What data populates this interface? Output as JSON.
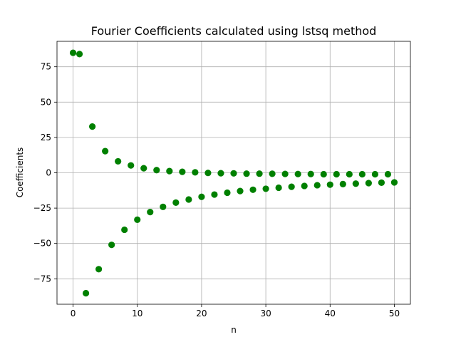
{
  "chart_data": {
    "type": "scatter",
    "title": "Fourier Coefficients calculated using lstsq method",
    "xlabel": "n",
    "ylabel": "Coefficients",
    "xlim": [
      -2.5,
      52.5
    ],
    "ylim": [
      -93,
      93
    ],
    "xticks": [
      0,
      10,
      20,
      30,
      40,
      50
    ],
    "yticks": [
      -75,
      -50,
      -25,
      0,
      25,
      50,
      75
    ],
    "xtick_labels": [
      "0",
      "10",
      "20",
      "30",
      "40",
      "50"
    ],
    "ytick_labels": [
      "−75",
      "−50",
      "−25",
      "0",
      "25",
      "50",
      "75"
    ],
    "grid": true,
    "marker_color": "#008000",
    "series": [
      {
        "x": [
          0,
          1,
          2,
          3,
          4,
          5,
          6,
          7,
          8,
          9,
          10,
          11,
          12,
          13,
          14,
          15,
          16,
          17,
          18,
          19,
          20,
          21,
          22,
          23,
          24,
          25,
          26,
          27,
          28,
          29,
          30,
          31,
          32,
          33,
          34,
          35,
          36,
          37,
          38,
          39,
          40,
          41,
          42,
          43,
          44,
          45,
          46,
          47,
          48,
          49,
          50
        ],
        "y": [
          84.9,
          84.0,
          -85.2,
          32.7,
          -68.2,
          15.3,
          -51.0,
          8.1,
          -40.3,
          5.2,
          -33.2,
          3.2,
          -27.8,
          1.9,
          -24.1,
          1.2,
          -21.1,
          0.7,
          -18.9,
          0.3,
          -17.0,
          -0.1,
          -15.4,
          -0.3,
          -14.1,
          -0.4,
          -12.9,
          -0.6,
          -12.0,
          -0.6,
          -11.3,
          -0.7,
          -10.6,
          -0.8,
          -9.9,
          -0.9,
          -9.3,
          -0.9,
          -8.8,
          -1.0,
          -8.4,
          -1.0,
          -8.0,
          -1.0,
          -7.7,
          -1.0,
          -7.3,
          -1.0,
          -7.0,
          -1.0,
          -6.8
        ]
      }
    ]
  }
}
